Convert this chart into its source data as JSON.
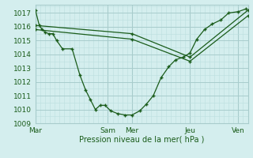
{
  "title": "",
  "xlabel": "Pression niveau de la mer( hPa )",
  "background_color": "#d4eeee",
  "plot_bg_color": "#d4eeee",
  "grid_major_color": "#a8cccc",
  "grid_minor_color": "#bcdede",
  "line_color": "#1a5c1a",
  "ylim": [
    1009,
    1017.6
  ],
  "xlim": [
    0,
    220
  ],
  "yticks": [
    1009,
    1010,
    1011,
    1012,
    1013,
    1014,
    1015,
    1016,
    1017
  ],
  "xtick_pos": [
    0,
    75,
    100,
    160,
    210
  ],
  "xtick_labels": [
    "Mar",
    "Sam",
    "Mer",
    "Jeu",
    "Ven"
  ],
  "series1_x": [
    0,
    4,
    7,
    10,
    14,
    18,
    22,
    28,
    38,
    46,
    52,
    57,
    62,
    67,
    72,
    78,
    85,
    93,
    100,
    108,
    115,
    122,
    130,
    138,
    145,
    153,
    160,
    167,
    175,
    183,
    192,
    200,
    210,
    218
  ],
  "series1_y": [
    1017.2,
    1016.1,
    1015.8,
    1015.6,
    1015.5,
    1015.5,
    1015.0,
    1014.4,
    1014.4,
    1012.5,
    1011.4,
    1010.7,
    1010.0,
    1010.3,
    1010.3,
    1009.9,
    1009.7,
    1009.6,
    1009.6,
    1009.9,
    1010.4,
    1011.0,
    1012.3,
    1013.1,
    1013.6,
    1013.8,
    1014.1,
    1015.1,
    1015.8,
    1016.2,
    1016.5,
    1017.0,
    1017.1,
    1017.3
  ],
  "series2_x": [
    0,
    100,
    160,
    220
  ],
  "series2_y": [
    1016.1,
    1015.5,
    1013.8,
    1017.2
  ],
  "series3_x": [
    0,
    100,
    160,
    220
  ],
  "series3_y": [
    1015.8,
    1015.1,
    1013.5,
    1016.8
  ],
  "figsize": [
    3.2,
    2.0
  ],
  "dpi": 100
}
